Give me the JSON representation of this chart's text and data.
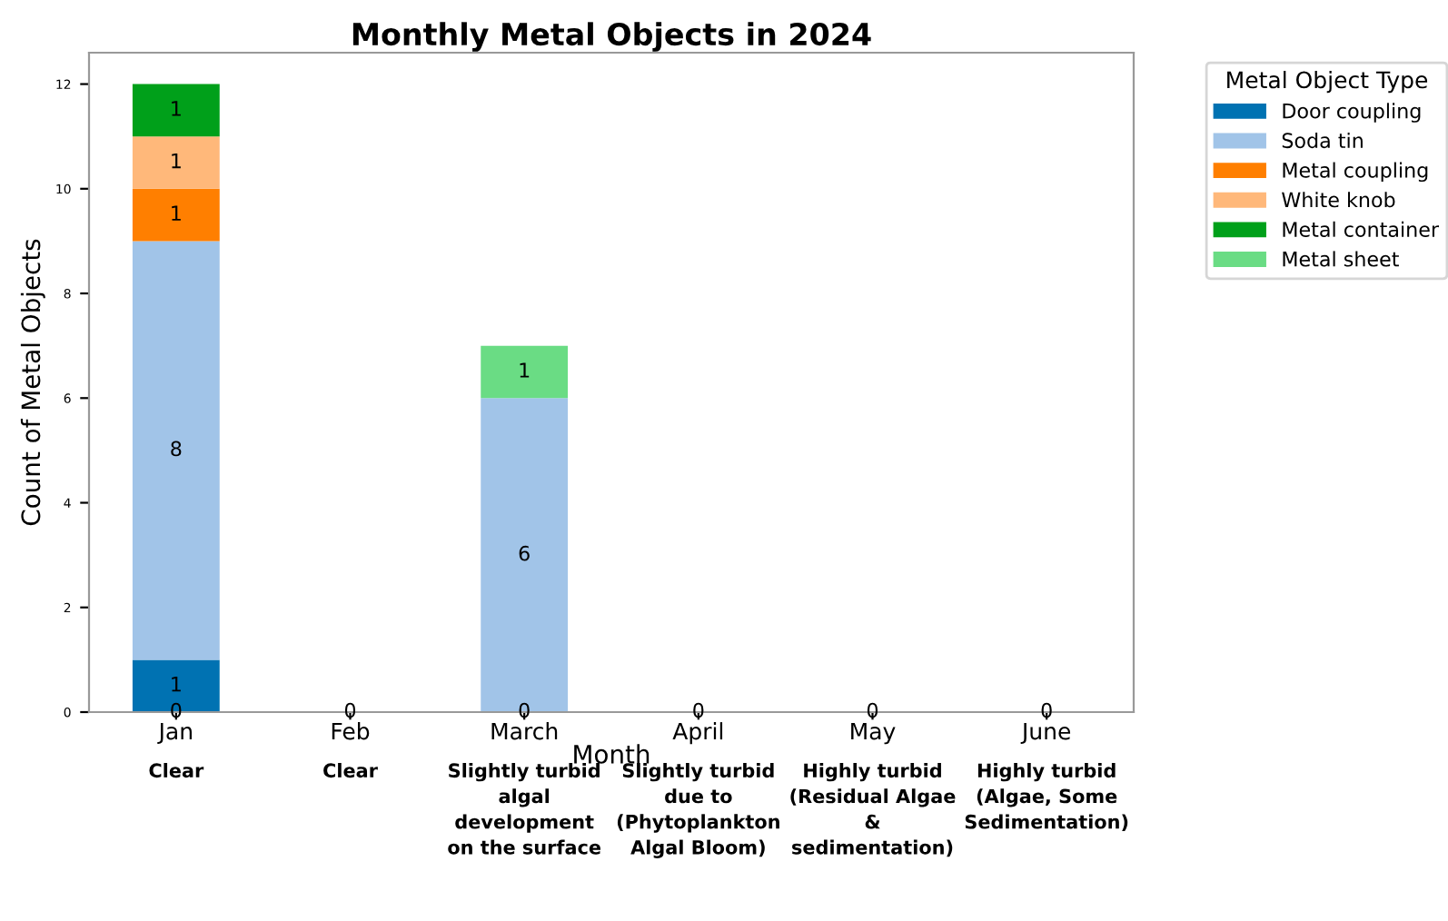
{
  "chart_data": {
    "type": "bar",
    "stacked": true,
    "title": "Monthly Metal Objects in 2024",
    "xlabel": "Month",
    "ylabel": "Count of Metal Objects",
    "legend_title": "Metal Object Type",
    "legend": "top right",
    "categories": [
      "Jan",
      "Feb",
      "March",
      "April",
      "May",
      "June"
    ],
    "series": [
      {
        "name": "Door coupling",
        "color": "#0072b2",
        "values": [
          1,
          0,
          0,
          0,
          0,
          0
        ],
        "value_labels": [
          "1",
          null,
          null,
          null,
          null,
          null
        ]
      },
      {
        "name": "Soda tin",
        "color": "#a1c4e8",
        "values": [
          8,
          0,
          6,
          0,
          0,
          0
        ],
        "value_labels": [
          "8",
          null,
          "6",
          null,
          null,
          null
        ]
      },
      {
        "name": "Metal coupling",
        "color": "#ff7f00",
        "values": [
          1,
          0,
          0,
          0,
          0,
          0
        ],
        "value_labels": [
          "1",
          null,
          null,
          null,
          null,
          null
        ]
      },
      {
        "name": "White knob",
        "color": "#ffb87a",
        "values": [
          1,
          0,
          0,
          0,
          0,
          0
        ],
        "value_labels": [
          "1",
          null,
          null,
          null,
          null,
          null
        ]
      },
      {
        "name": "Metal container",
        "color": "#00a01a",
        "values": [
          1,
          0,
          0,
          0,
          0,
          0
        ],
        "value_labels": [
          "1",
          null,
          null,
          null,
          null,
          null
        ]
      },
      {
        "name": "Metal sheet",
        "color": "#6adc84",
        "values": [
          0,
          0,
          1,
          0,
          0,
          0
        ],
        "value_labels": [
          null,
          null,
          "1",
          null,
          null,
          null
        ]
      }
    ],
    "ylim": [
      0,
      12.6
    ],
    "yticks": [
      0,
      2,
      4,
      6,
      8,
      10,
      12
    ],
    "grid": false,
    "annotations": [
      {
        "text": "0",
        "x": "Jan",
        "y": 0
      },
      {
        "text": "0",
        "x": "Feb",
        "y": 0
      },
      {
        "text": "0",
        "x": "March",
        "y": 0
      },
      {
        "text": "0",
        "x": "April",
        "y": 0
      },
      {
        "text": "0",
        "x": "May",
        "y": 0
      },
      {
        "text": "0",
        "x": "June",
        "y": 0
      },
      "Clear",
      "Clear",
      "Slightly turbid\nalgal\ndevelopment\non the surface",
      "Slightly turbid\ndue to\n(Phytoplankton\nAlgal Bloom)",
      "Highly turbid\n(Residual Algae\n&\nsedimentation)",
      "Highly turbid\n(Algae, Some\nSedimentation)"
    ]
  }
}
